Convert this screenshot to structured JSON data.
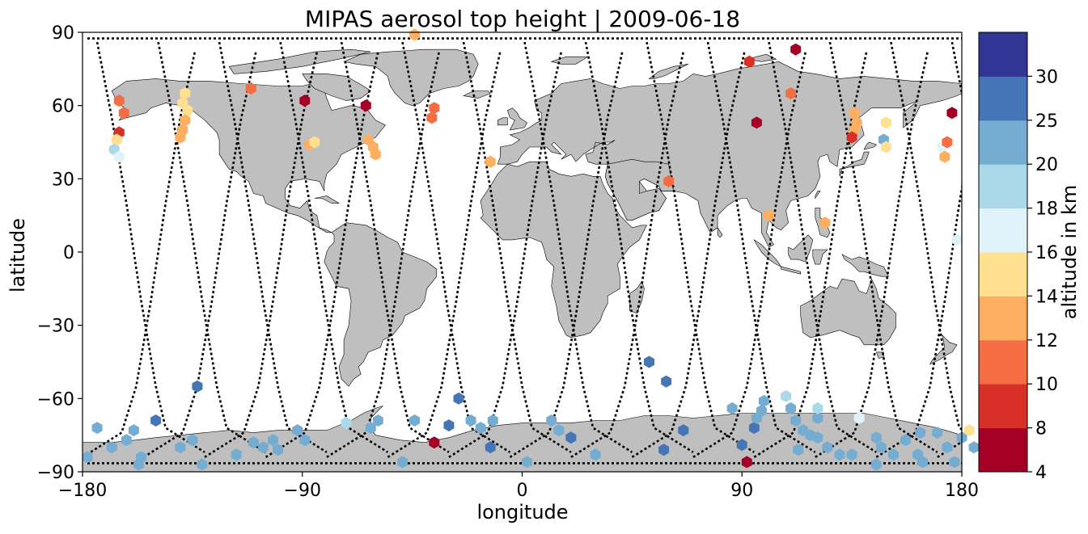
{
  "chart_data": {
    "type": "scatter",
    "title": "MIPAS aerosol top height | 2009-06-18",
    "xlabel": "longitude",
    "ylabel": "latitude",
    "xlim": [
      -180,
      180
    ],
    "ylim": [
      -90,
      90
    ],
    "xticks": [
      "−180",
      "−90",
      "0",
      "90",
      "180"
    ],
    "yticks": [
      "90",
      "60",
      "30",
      "0",
      "−30",
      "−60",
      "−90"
    ],
    "grid": false,
    "colorbar": {
      "label": "altitude in km",
      "bounds": [
        4,
        8,
        10,
        12,
        14,
        16,
        18,
        20,
        25,
        30
      ],
      "colors": [
        "#a50026",
        "#d73027",
        "#f46d43",
        "#fdae61",
        "#fee090",
        "#e0f3f8",
        "#abd9e9",
        "#74add1",
        "#4575b4",
        "#313695"
      ],
      "ticklabels": [
        "4",
        "8",
        "10",
        "12",
        "14",
        "16",
        "18",
        "20",
        "25",
        "30"
      ]
    },
    "land_color": "#bfbfbf",
    "track_color": "#000000",
    "points": [
      [
        -165,
        62,
        11
      ],
      [
        -163,
        57,
        11
      ],
      [
        -165,
        49,
        9
      ],
      [
        -166,
        46,
        15
      ],
      [
        -167,
        42,
        19
      ],
      [
        -165,
        39,
        17
      ],
      [
        -138,
        65,
        15
      ],
      [
        -139,
        61,
        14
      ],
      [
        -137,
        58,
        14
      ],
      [
        -138,
        54,
        13
      ],
      [
        -139,
        50,
        13
      ],
      [
        -140,
        47,
        13
      ],
      [
        -111,
        67,
        11
      ],
      [
        -89,
        62,
        7
      ],
      [
        -87,
        44,
        13
      ],
      [
        -85,
        45,
        14
      ],
      [
        -64,
        60,
        7
      ],
      [
        -63,
        46,
        13
      ],
      [
        -61,
        43,
        12
      ],
      [
        -60,
        40,
        13
      ],
      [
        -44,
        89,
        12
      ],
      [
        -36,
        59,
        11
      ],
      [
        -37,
        55,
        11
      ],
      [
        -13,
        37,
        13
      ],
      [
        60,
        29,
        11
      ],
      [
        93,
        78,
        9
      ],
      [
        96,
        53,
        7
      ],
      [
        101,
        15,
        12
      ],
      [
        112,
        83,
        7
      ],
      [
        110,
        65,
        11
      ],
      [
        124,
        12,
        12
      ],
      [
        136,
        57,
        12
      ],
      [
        137,
        53,
        13
      ],
      [
        136,
        50,
        13
      ],
      [
        135,
        47,
        9
      ],
      [
        148,
        46,
        22
      ],
      [
        149,
        53,
        15
      ],
      [
        149,
        43,
        15
      ],
      [
        172,
        43,
        17
      ],
      [
        173,
        39,
        12
      ],
      [
        174,
        45,
        11
      ],
      [
        176,
        57,
        7
      ],
      [
        178,
        5,
        17
      ],
      [
        -150,
        -69,
        27
      ],
      [
        -133,
        -55,
        27
      ],
      [
        -178,
        -84,
        22
      ],
      [
        -168,
        -80,
        22
      ],
      [
        -162,
        -77,
        22
      ],
      [
        -157,
        -87,
        22
      ],
      [
        -156,
        -84,
        22
      ],
      [
        -140,
        -80,
        22
      ],
      [
        -135,
        -77,
        22
      ],
      [
        -131,
        -87,
        22
      ],
      [
        -117,
        -83,
        22
      ],
      [
        -110,
        -78,
        22
      ],
      [
        -106,
        -80,
        22
      ],
      [
        -100,
        -81,
        22
      ],
      [
        -102,
        -77,
        22
      ],
      [
        -92,
        -73,
        22
      ],
      [
        -89,
        -77,
        22
      ],
      [
        -72,
        -70,
        19
      ],
      [
        -62,
        -72,
        22
      ],
      [
        -59,
        -69,
        22
      ],
      [
        -44,
        -69,
        22
      ],
      [
        -49,
        -86,
        22
      ],
      [
        -36,
        -78,
        7
      ],
      [
        -30,
        -71,
        27
      ],
      [
        -26,
        -60,
        27
      ],
      [
        -21,
        -69,
        22
      ],
      [
        -17,
        -72,
        22
      ],
      [
        -12,
        -69,
        22
      ],
      [
        -13,
        -80,
        27
      ],
      [
        2,
        -86,
        22
      ],
      [
        12,
        -69,
        22
      ],
      [
        15,
        -73,
        22
      ],
      [
        20,
        -76,
        27
      ],
      [
        30,
        -83,
        22
      ],
      [
        52,
        -45,
        27
      ],
      [
        59,
        -53,
        27
      ],
      [
        58,
        -81,
        27
      ],
      [
        66,
        -73,
        27
      ],
      [
        86,
        -64,
        22
      ],
      [
        90,
        -79,
        27
      ],
      [
        95,
        -72,
        27
      ],
      [
        96,
        -68,
        22
      ],
      [
        98,
        -65,
        22
      ],
      [
        99,
        -61,
        22
      ],
      [
        108,
        -59,
        19
      ],
      [
        110,
        -64,
        22
      ],
      [
        112,
        -69,
        22
      ],
      [
        115,
        -73,
        22
      ],
      [
        113,
        -81,
        22
      ],
      [
        118,
        -75,
        22
      ],
      [
        121,
        -76,
        22
      ],
      [
        121,
        -68,
        22
      ],
      [
        121,
        -64,
        19
      ],
      [
        125,
        -80,
        22
      ],
      [
        130,
        -83,
        22
      ],
      [
        135,
        -83,
        22
      ],
      [
        138,
        -68,
        17
      ],
      [
        145,
        -76,
        22
      ],
      [
        147,
        -80,
        22
      ],
      [
        145,
        -87,
        22
      ],
      [
        152,
        -83,
        22
      ],
      [
        157,
        -77,
        22
      ],
      [
        162,
        -83,
        22
      ],
      [
        164,
        -86,
        22
      ],
      [
        163,
        -74,
        22
      ],
      [
        170,
        -74,
        22
      ],
      [
        174,
        -80,
        22
      ],
      [
        177,
        -86,
        22
      ],
      [
        180,
        -76,
        22
      ],
      [
        183,
        -73,
        15
      ],
      [
        185,
        -80,
        22
      ],
      [
        92,
        -86,
        7
      ],
      [
        -174,
        -72,
        22
      ],
      [
        -159,
        -73,
        22
      ]
    ]
  }
}
